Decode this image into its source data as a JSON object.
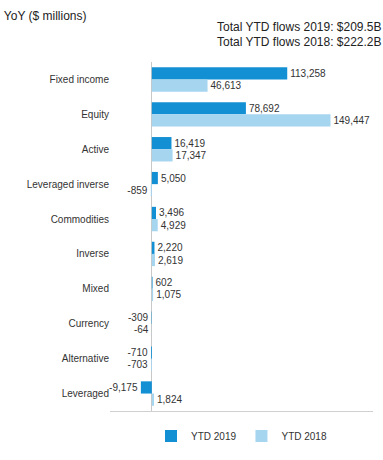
{
  "chart_data": {
    "type": "bar",
    "title": "YoY ($ millions)",
    "annotations": [
      "Total YTD flows 2019: $209.5B",
      "Total YTD flows 2018: $222.2B"
    ],
    "orientation": "horizontal",
    "categories": [
      "Fixed income",
      "Equity",
      "Active",
      "Leveraged inverse",
      "Commodities",
      "Inverse",
      "Mixed",
      "Currency",
      "Alternative",
      "Leveraged"
    ],
    "series": [
      {
        "name": "YTD 2019",
        "color": "#1390d4",
        "values": [
          113258,
          78692,
          16419,
          5050,
          3496,
          2220,
          602,
          -309,
          -710,
          -9175
        ],
        "value_labels": [
          "113,258",
          "78,692",
          "16,419",
          "5,050",
          "3,496",
          "2,220",
          "602",
          "-309",
          "-710",
          "-9,175"
        ]
      },
      {
        "name": "YTD 2018",
        "color": "#a6d5f0",
        "values": [
          46613,
          149447,
          17347,
          -859,
          4929,
          2619,
          1075,
          -64,
          -703,
          1824
        ],
        "value_labels": [
          "46,613",
          "149,447",
          "17,347",
          "-859",
          "4,929",
          "2,619",
          "1,075",
          "-64",
          "-703",
          "1,824"
        ]
      }
    ],
    "xlim": [
      -35000,
      185000
    ],
    "xticks": [],
    "grid": false,
    "legend": "bottom",
    "data_labels": true,
    "tick_labels": "y",
    "stacked": false
  }
}
